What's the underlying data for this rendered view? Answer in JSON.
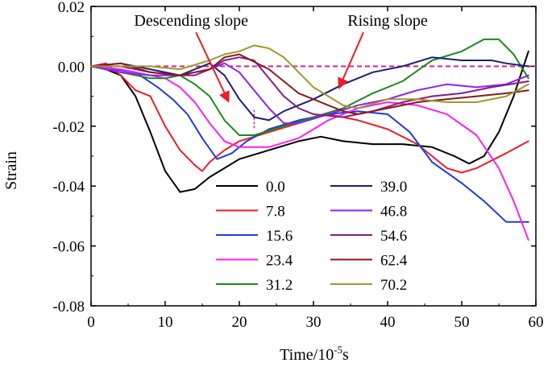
{
  "chart_data": {
    "type": "line",
    "xlabel": "Time/10",
    "xlabel_sup": "-5",
    "xlabel_unit": "s",
    "ylabel": "Strain",
    "xlim": [
      0,
      60
    ],
    "ylim": [
      -0.08,
      0.02
    ],
    "xticks": [
      0,
      10,
      20,
      30,
      40,
      50,
      60
    ],
    "yticks": [
      0.02,
      0.0,
      -0.02,
      -0.04,
      -0.06,
      -0.08
    ],
    "ytick_labels": [
      "0.02",
      "0.00",
      "-0.02",
      "-0.04",
      "-0.06",
      "-0.08"
    ],
    "reference_line": {
      "y": 0.0,
      "color": "#e8227c",
      "style": "dashed"
    },
    "annotations": [
      {
        "text": "Descending slope",
        "x": 13.5,
        "y": 0.0135,
        "arrow_to": [
          18.5,
          -0.0115
        ]
      },
      {
        "text": "Rising slope",
        "x": 40,
        "y": 0.0135,
        "arrow_to": [
          33.5,
          -0.007
        ]
      }
    ],
    "marker": {
      "x": 22,
      "y_from": -0.0145,
      "y_to": -0.021,
      "color": "#e8227c"
    },
    "legend_columns": 2,
    "series": [
      {
        "name": "0.0",
        "color": "#000000",
        "points": [
          [
            0,
            0
          ],
          [
            2,
            -0.001
          ],
          [
            4,
            -0.003
          ],
          [
            6,
            -0.01
          ],
          [
            8,
            -0.022
          ],
          [
            10,
            -0.035
          ],
          [
            12,
            -0.042
          ],
          [
            14,
            -0.041
          ],
          [
            16,
            -0.037
          ],
          [
            18,
            -0.034
          ],
          [
            20,
            -0.031
          ],
          [
            24,
            -0.028
          ],
          [
            28,
            -0.025
          ],
          [
            31,
            -0.0235
          ],
          [
            34,
            -0.025
          ],
          [
            38,
            -0.026
          ],
          [
            42,
            -0.026
          ],
          [
            46,
            -0.027
          ],
          [
            49,
            -0.03
          ],
          [
            51,
            -0.0325
          ],
          [
            53,
            -0.03
          ],
          [
            55,
            -0.022
          ],
          [
            57,
            -0.01
          ],
          [
            59,
            0.005
          ]
        ]
      },
      {
        "name": "7.8",
        "color": "#ee1c25",
        "points": [
          [
            0,
            0
          ],
          [
            2,
            0.001
          ],
          [
            4,
            -0.003
          ],
          [
            6,
            -0.008
          ],
          [
            8,
            -0.01
          ],
          [
            10,
            -0.02
          ],
          [
            12,
            -0.028
          ],
          [
            14,
            -0.033
          ],
          [
            15,
            -0.035
          ],
          [
            16,
            -0.032
          ],
          [
            18,
            -0.028
          ],
          [
            20,
            -0.025
          ],
          [
            24,
            -0.022
          ],
          [
            28,
            -0.019
          ],
          [
            32,
            -0.016
          ],
          [
            36,
            -0.018
          ],
          [
            40,
            -0.021
          ],
          [
            44,
            -0.026
          ],
          [
            48,
            -0.034
          ],
          [
            50,
            -0.0355
          ],
          [
            52,
            -0.034
          ],
          [
            56,
            -0.029
          ],
          [
            59,
            -0.025
          ]
        ]
      },
      {
        "name": "15.6",
        "color": "#1f3adb",
        "points": [
          [
            0,
            0
          ],
          [
            3,
            -0.001
          ],
          [
            6,
            -0.002
          ],
          [
            9,
            -0.007
          ],
          [
            11,
            -0.011
          ],
          [
            13,
            -0.016
          ],
          [
            15,
            -0.024
          ],
          [
            17,
            -0.031
          ],
          [
            19,
            -0.029
          ],
          [
            21,
            -0.025
          ],
          [
            24,
            -0.021
          ],
          [
            28,
            -0.018
          ],
          [
            32,
            -0.016
          ],
          [
            36,
            -0.015
          ],
          [
            40,
            -0.016
          ],
          [
            43,
            -0.022
          ],
          [
            46,
            -0.032
          ],
          [
            50,
            -0.039
          ],
          [
            53,
            -0.045
          ],
          [
            56,
            -0.052
          ],
          [
            59,
            -0.052
          ]
        ]
      },
      {
        "name": "23.4",
        "color": "#ff1fee",
        "points": [
          [
            0,
            0
          ],
          [
            4,
            -0.001
          ],
          [
            8,
            -0.003
          ],
          [
            10,
            -0.004
          ],
          [
            12,
            -0.007
          ],
          [
            14,
            -0.012
          ],
          [
            16,
            -0.019
          ],
          [
            18,
            -0.025
          ],
          [
            20,
            -0.027
          ],
          [
            24,
            -0.027
          ],
          [
            28,
            -0.024
          ],
          [
            32,
            -0.018
          ],
          [
            36,
            -0.014
          ],
          [
            40,
            -0.012
          ],
          [
            44,
            -0.013
          ],
          [
            48,
            -0.016
          ],
          [
            52,
            -0.023
          ],
          [
            55,
            -0.034
          ],
          [
            57,
            -0.045
          ],
          [
            59,
            -0.058
          ]
        ]
      },
      {
        "name": "31.2",
        "color": "#1a8a1a",
        "points": [
          [
            0,
            0
          ],
          [
            4,
            -0.002
          ],
          [
            8,
            -0.004
          ],
          [
            10,
            -0.004
          ],
          [
            12,
            -0.003
          ],
          [
            14,
            -0.006
          ],
          [
            16,
            -0.01
          ],
          [
            18,
            -0.018
          ],
          [
            20,
            -0.023
          ],
          [
            22,
            -0.023
          ],
          [
            26,
            -0.02
          ],
          [
            30,
            -0.017
          ],
          [
            34,
            -0.014
          ],
          [
            38,
            -0.009
          ],
          [
            42,
            -0.005
          ],
          [
            46,
            0.002
          ],
          [
            50,
            0.005
          ],
          [
            53,
            0.009
          ],
          [
            55,
            0.009
          ],
          [
            57,
            0.004
          ],
          [
            59,
            -0.004
          ]
        ]
      },
      {
        "name": "39.0",
        "color": "#1a1f7a",
        "points": [
          [
            0,
            0
          ],
          [
            4,
            0.001
          ],
          [
            8,
            -0.001
          ],
          [
            12,
            -0.003
          ],
          [
            14,
            -0.001
          ],
          [
            16,
            0.001
          ],
          [
            18,
            -0.003
          ],
          [
            20,
            -0.011
          ],
          [
            22,
            -0.017
          ],
          [
            24,
            -0.018
          ],
          [
            26,
            -0.015
          ],
          [
            30,
            -0.011
          ],
          [
            34,
            -0.006
          ],
          [
            38,
            -0.002
          ],
          [
            42,
            0.0
          ],
          [
            46,
            0.003
          ],
          [
            50,
            0.002
          ],
          [
            54,
            0.002
          ],
          [
            56,
            0.001
          ],
          [
            59,
            0.0
          ]
        ]
      },
      {
        "name": "46.8",
        "color": "#8a1fff",
        "points": [
          [
            0,
            0
          ],
          [
            4,
            -0.002
          ],
          [
            8,
            -0.003
          ],
          [
            12,
            -0.003
          ],
          [
            14,
            -0.002
          ],
          [
            16,
            -0.001
          ],
          [
            18,
            0.001
          ],
          [
            20,
            -0.002
          ],
          [
            22,
            -0.008
          ],
          [
            24,
            -0.014
          ],
          [
            26,
            -0.019
          ],
          [
            28,
            -0.019
          ],
          [
            32,
            -0.016
          ],
          [
            36,
            -0.013
          ],
          [
            40,
            -0.011
          ],
          [
            44,
            -0.008
          ],
          [
            48,
            -0.006
          ],
          [
            52,
            -0.007
          ],
          [
            56,
            -0.006
          ],
          [
            59,
            -0.003
          ]
        ]
      },
      {
        "name": "54.6",
        "color": "#8a1a8a",
        "points": [
          [
            0,
            0
          ],
          [
            4,
            0.0
          ],
          [
            8,
            -0.002
          ],
          [
            12,
            -0.003
          ],
          [
            14,
            -0.003
          ],
          [
            16,
            -0.001
          ],
          [
            18,
            0.002
          ],
          [
            20,
            0.003
          ],
          [
            22,
            0.002
          ],
          [
            24,
            -0.004
          ],
          [
            26,
            -0.01
          ],
          [
            28,
            -0.014
          ],
          [
            30,
            -0.016
          ],
          [
            34,
            -0.017
          ],
          [
            38,
            -0.015
          ],
          [
            42,
            -0.012
          ],
          [
            46,
            -0.01
          ],
          [
            50,
            -0.009
          ],
          [
            54,
            -0.007
          ],
          [
            59,
            -0.005
          ]
        ]
      },
      {
        "name": "62.4",
        "color": "#8a1a1a",
        "points": [
          [
            0,
            0
          ],
          [
            4,
            0.001
          ],
          [
            8,
            -0.002
          ],
          [
            12,
            -0.003
          ],
          [
            16,
            -0.001
          ],
          [
            18,
            0.003
          ],
          [
            20,
            0.004
          ],
          [
            24,
            -0.001
          ],
          [
            26,
            -0.005
          ],
          [
            28,
            -0.009
          ],
          [
            30,
            -0.011
          ],
          [
            32,
            -0.013
          ],
          [
            34,
            -0.015
          ],
          [
            36,
            -0.016
          ],
          [
            40,
            -0.014
          ],
          [
            44,
            -0.012
          ],
          [
            48,
            -0.011
          ],
          [
            52,
            -0.01
          ],
          [
            56,
            -0.009
          ],
          [
            59,
            -0.008
          ]
        ]
      },
      {
        "name": "70.2",
        "color": "#9c9a2a",
        "points": [
          [
            0,
            0
          ],
          [
            4,
            0.0
          ],
          [
            8,
            0.0
          ],
          [
            12,
            -0.001
          ],
          [
            16,
            0.002
          ],
          [
            18,
            0.004
          ],
          [
            20,
            0.005
          ],
          [
            22,
            0.007
          ],
          [
            24,
            0.006
          ],
          [
            26,
            0.003
          ],
          [
            28,
            -0.002
          ],
          [
            30,
            -0.007
          ],
          [
            32,
            -0.01
          ],
          [
            34,
            -0.013
          ],
          [
            36,
            -0.014
          ],
          [
            40,
            -0.011
          ],
          [
            44,
            -0.011
          ],
          [
            48,
            -0.012
          ],
          [
            52,
            -0.012
          ],
          [
            56,
            -0.01
          ],
          [
            59,
            -0.006
          ]
        ]
      }
    ]
  }
}
